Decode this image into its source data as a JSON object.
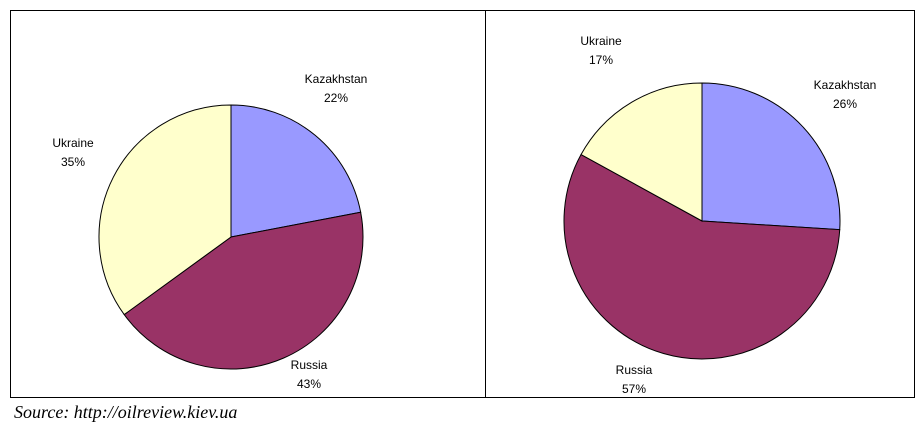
{
  "chart_data": [
    {
      "type": "pie",
      "categories": [
        "Kazakhstan",
        "Russia",
        "Ukraine"
      ],
      "values": [
        22,
        43,
        35
      ],
      "value_labels": [
        "22%",
        "43%",
        "35%"
      ],
      "colors": [
        "#9999ff",
        "#993366",
        "#ffffcc"
      ]
    },
    {
      "type": "pie",
      "categories": [
        "Kazakhstan",
        "Russia",
        "Ukraine"
      ],
      "values": [
        26,
        57,
        17
      ],
      "value_labels": [
        "26%",
        "57%",
        "17%"
      ],
      "colors": [
        "#9999ff",
        "#993366",
        "#ffffcc"
      ]
    }
  ],
  "source": "Source: http://oilreview.kiev.ua"
}
